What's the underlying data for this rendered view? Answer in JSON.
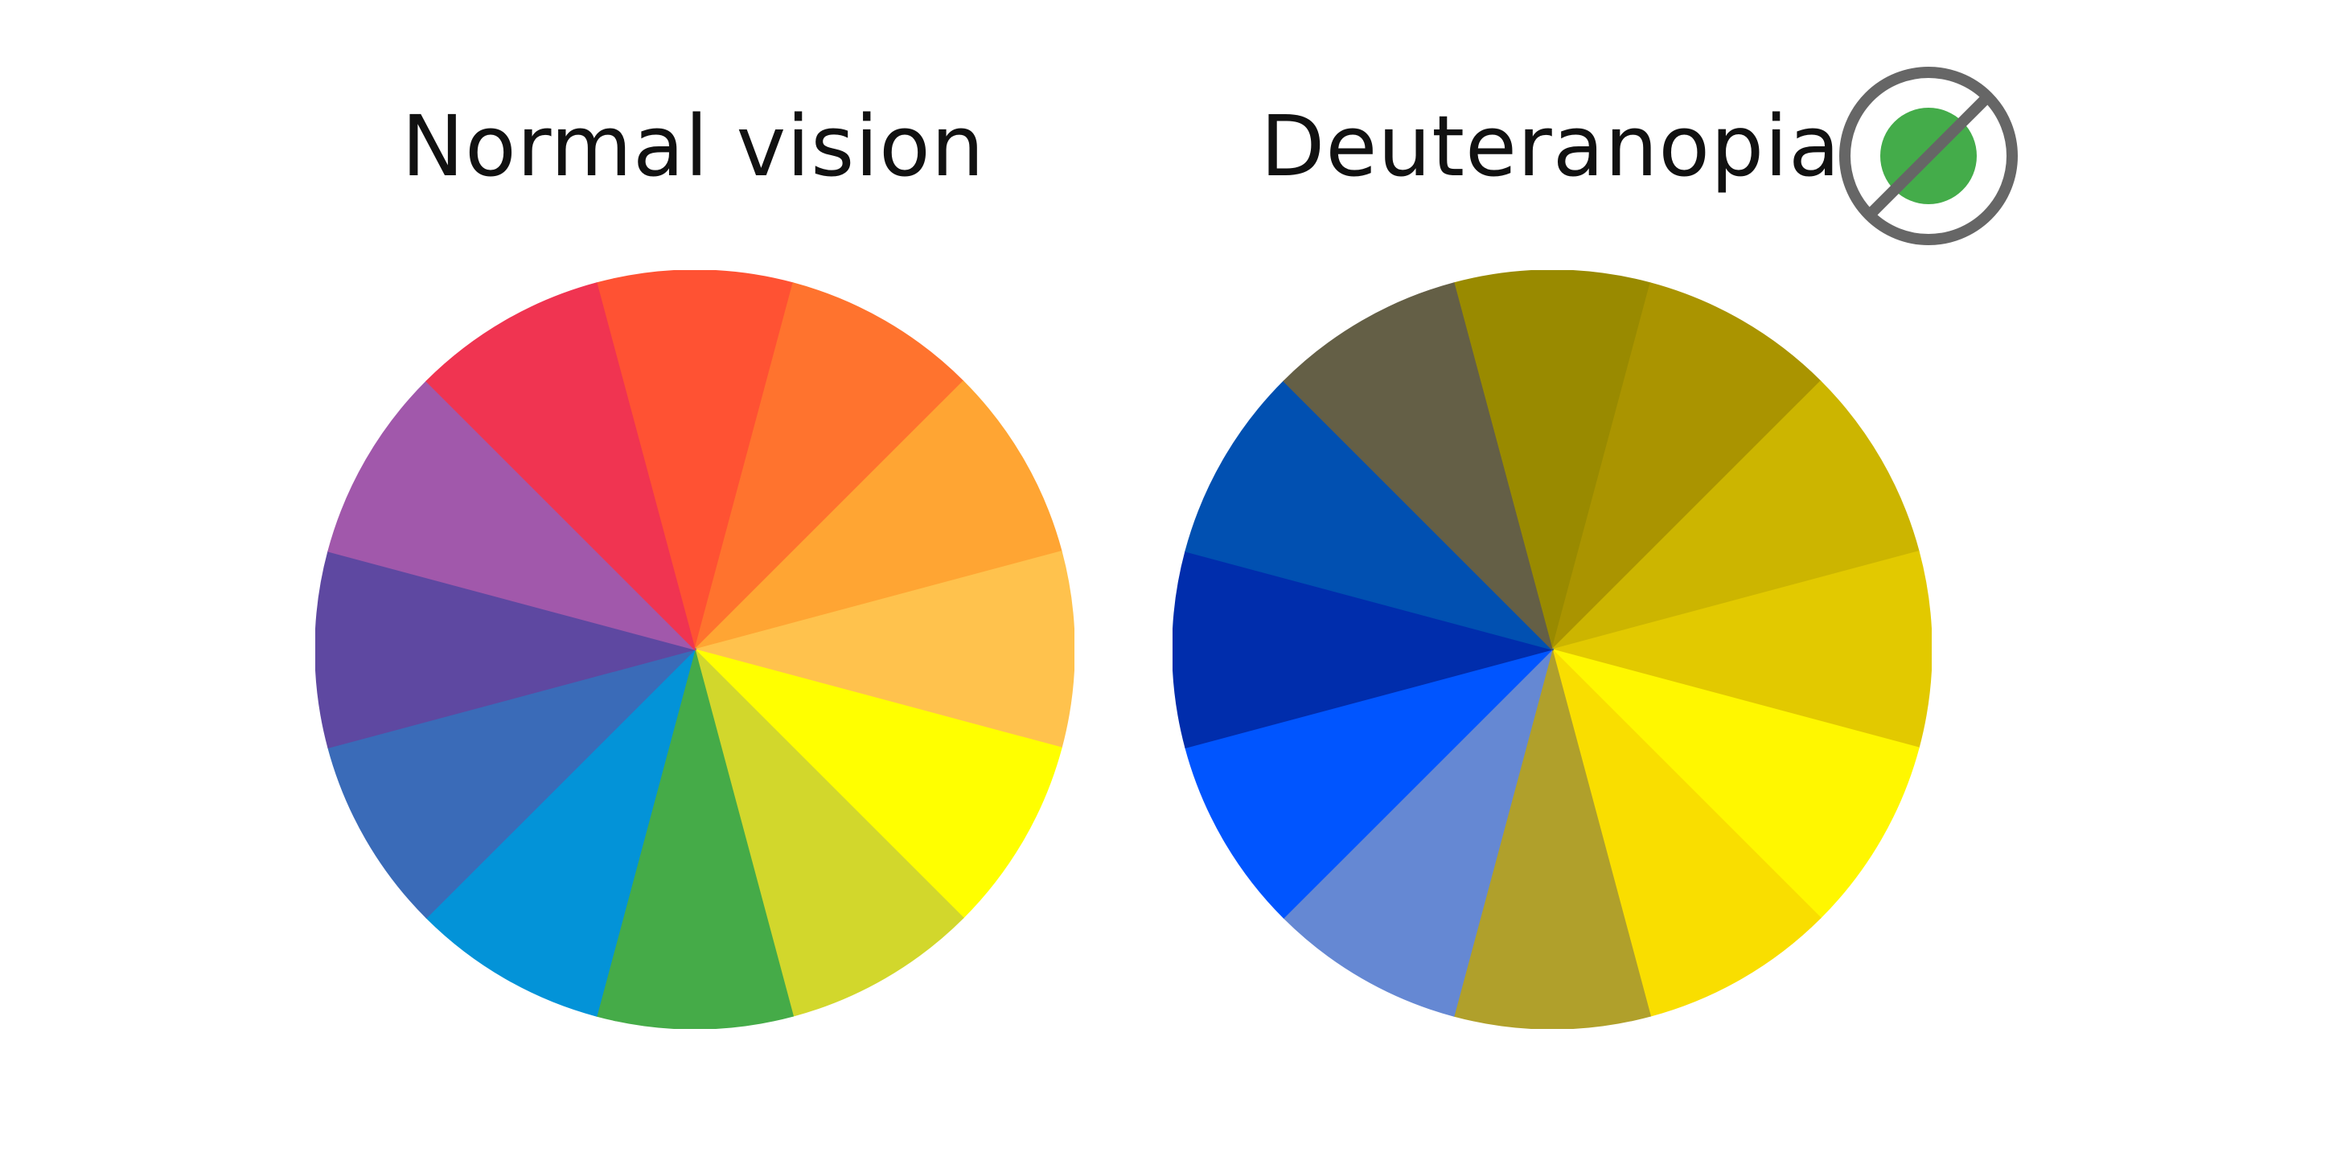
{
  "panels": [
    {
      "title": "Normal vision",
      "slice_colors": [
        "#FF5233",
        "#FF732E",
        "#FFA533",
        "#FFC24D",
        "#FFFF00",
        "#D2D72C",
        "#45AB48",
        "#0393D8",
        "#3A6BB8",
        "#5E48A1",
        "#A158AB",
        "#F03451"
      ]
    },
    {
      "title": "Deuteranopia",
      "slice_colors": [
        "#998A00",
        "#AA9400",
        "#CCB500",
        "#E2C900",
        "#FFF700",
        "#F9DE00",
        "#B0A02B",
        "#6588D3",
        "#0055FF",
        "#002DAC",
        "#0150B1",
        "#645F46"
      ]
    }
  ],
  "icon": {
    "name": "deuteranopia-icon",
    "ring_color": "#666666",
    "dot_color": "#44AC4A"
  }
}
